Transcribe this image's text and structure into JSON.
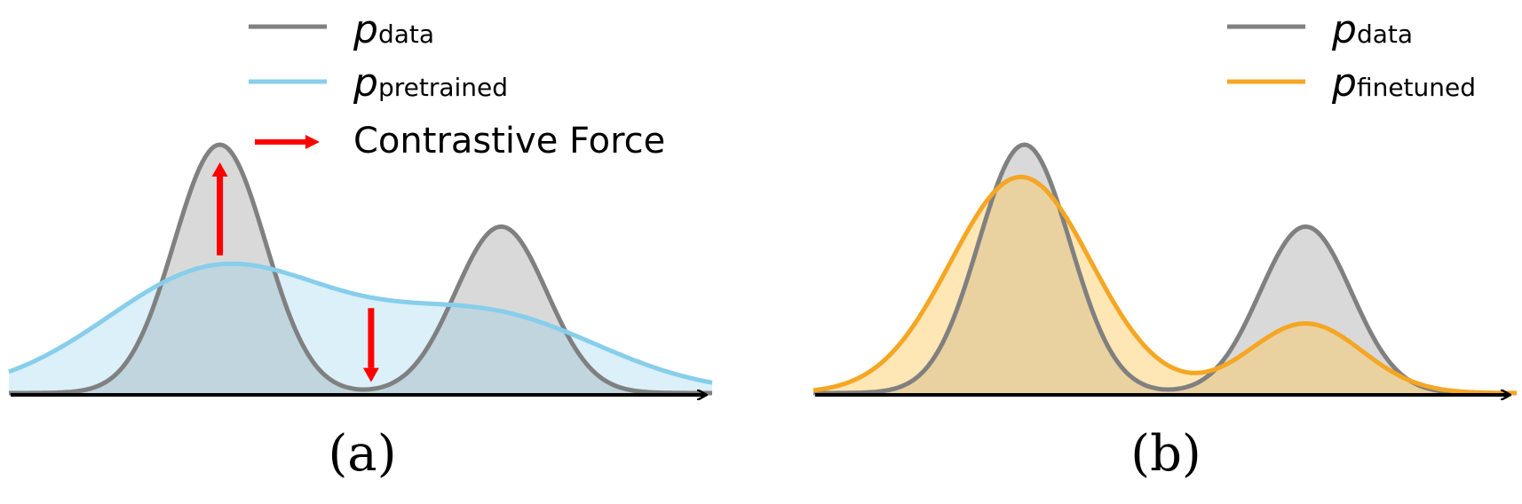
{
  "panels": [
    {
      "caption": "(a)",
      "legend": [
        {
          "symbol": "p",
          "subscript": "data",
          "color": "#808080",
          "kind": "line"
        },
        {
          "symbol": "p",
          "subscript": "pretrained",
          "color": "#87ceeb",
          "kind": "line"
        },
        {
          "label": "Contrastive Force",
          "color": "#ff0000",
          "kind": "arrow"
        }
      ],
      "curves": [
        {
          "name": "data",
          "color": "#808080",
          "fill": "#d9d9d9",
          "type": "bimodal",
          "peaks": [
            {
              "mu": 0.3,
              "sigma": 0.065,
              "h": 1.0
            },
            {
              "mu": 0.7,
              "sigma": 0.065,
              "h": 0.67
            }
          ]
        },
        {
          "name": "pretrained",
          "color": "#87ceeb",
          "fill": "rgba(135,206,235,0.30)",
          "type": "bimodal",
          "peaks": [
            {
              "mu": 0.3,
              "sigma": 0.16,
              "h": 0.5
            },
            {
              "mu": 0.68,
              "sigma": 0.16,
              "h": 0.31
            }
          ]
        }
      ],
      "forces": [
        {
          "direction": "up",
          "x": 0.3
        },
        {
          "direction": "down",
          "x": 0.515
        }
      ]
    },
    {
      "caption": "(b)",
      "legend": [
        {
          "symbol": "p",
          "subscript": "data",
          "color": "#808080",
          "kind": "line"
        },
        {
          "symbol": "p",
          "subscript": "finetuned",
          "color": "#f5a623",
          "kind": "line"
        }
      ],
      "curves": [
        {
          "name": "data",
          "color": "#808080",
          "fill": "#d9d9d9",
          "type": "bimodal",
          "peaks": [
            {
              "mu": 0.3,
              "sigma": 0.065,
              "h": 1.0
            },
            {
              "mu": 0.7,
              "sigma": 0.065,
              "h": 0.67
            }
          ]
        },
        {
          "name": "finetuned",
          "color": "#f5a623",
          "fill": "rgba(255,200,90,0.45)",
          "type": "bimodal",
          "peaks": [
            {
              "mu": 0.295,
              "sigma": 0.1,
              "h": 0.87
            },
            {
              "mu": 0.7,
              "sigma": 0.08,
              "h": 0.28
            }
          ]
        }
      ]
    }
  ]
}
